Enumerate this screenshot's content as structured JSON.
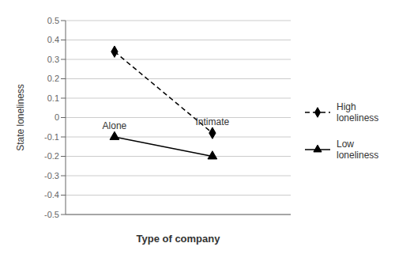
{
  "chart_data": {
    "type": "line",
    "x": [
      1,
      2
    ],
    "xlim": [
      0.5,
      2.8
    ],
    "ylim": [
      -0.5,
      0.5
    ],
    "yticks": [
      -0.5,
      -0.4,
      -0.3,
      -0.2,
      -0.1,
      0,
      0.1,
      0.2,
      0.3,
      0.4,
      0.5
    ],
    "xlabel": "Type of company",
    "ylabel": "State loneliness",
    "series": [
      {
        "name": "High\nloneliness",
        "color": "#000000",
        "values": [
          0.34,
          -0.08
        ],
        "marker": "diamond",
        "line_style": "dashed"
      },
      {
        "name": "Low\nloneliness",
        "color": "#000000",
        "values": [
          -0.1,
          -0.2
        ],
        "marker": "triangle",
        "line_style": "solid"
      }
    ],
    "annotations": [
      {
        "text": "Alone",
        "x": 1.0,
        "y": -0.075
      },
      {
        "text": "Intimate",
        "x": 2.0,
        "y": -0.055
      }
    ],
    "grid": true,
    "legend": "right",
    "tick_labels": "y"
  }
}
